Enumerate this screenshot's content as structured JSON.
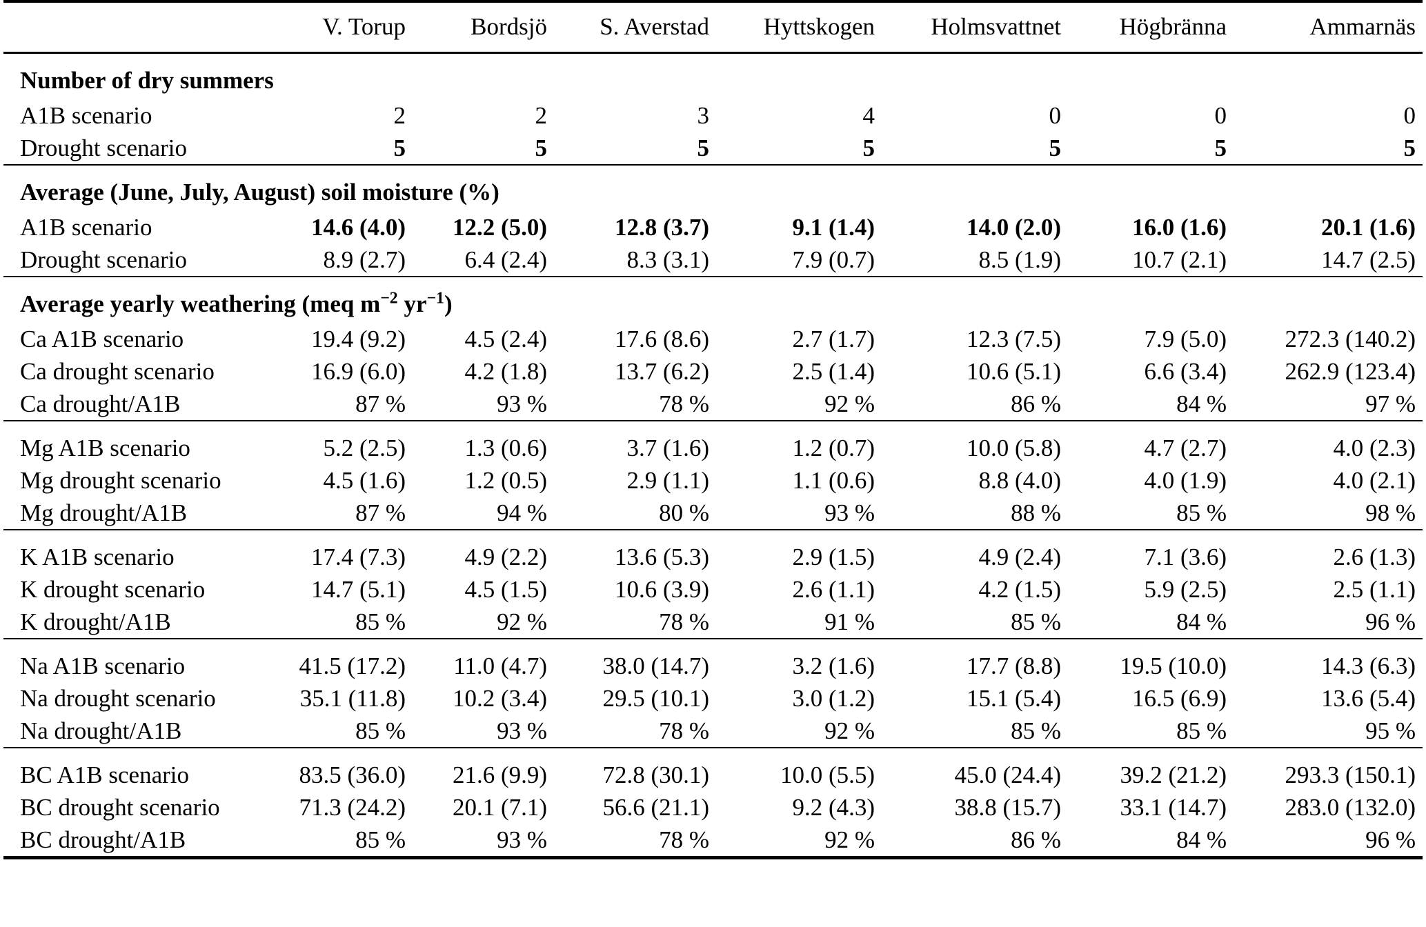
{
  "table": {
    "columns": [
      "",
      "V. Torup",
      "Bordsjö",
      "S. Averstad",
      "Hyttskogen",
      "Holmsvattnet",
      "Högbränna",
      "Ammarnäs"
    ],
    "sections": [
      {
        "id": "dry-summers",
        "title_parts": [
          {
            "t": "Number of dry summers"
          }
        ],
        "rows": [
          {
            "label": "A1B scenario",
            "bold_values": false,
            "values": [
              "2",
              "2",
              "3",
              "4",
              "0",
              "0",
              "0"
            ]
          },
          {
            "label": "Drought scenario",
            "bold_values": true,
            "values": [
              "5",
              "5",
              "5",
              "5",
              "5",
              "5",
              "5"
            ]
          }
        ]
      },
      {
        "id": "soil-moisture",
        "title_parts": [
          {
            "t": "Average (June, July, August) soil moisture (%)"
          }
        ],
        "rows": [
          {
            "label": "A1B scenario",
            "bold_values": true,
            "values": [
              "14.6 (4.0)",
              "12.2 (5.0)",
              "12.8 (3.7)",
              "9.1 (1.4)",
              "14.0 (2.0)",
              "16.0 (1.6)",
              "20.1 (1.6)"
            ]
          },
          {
            "label": "Drought scenario",
            "bold_values": false,
            "values": [
              "8.9 (2.7)",
              "6.4 (2.4)",
              "8.3 (3.1)",
              "7.9 (0.7)",
              "8.5 (1.9)",
              "10.7 (2.1)",
              "14.7 (2.5)"
            ]
          }
        ]
      },
      {
        "id": "weathering-ca",
        "title_parts": [
          {
            "t": "Average yearly weathering (meq m"
          },
          {
            "t": "−2",
            "sup": true
          },
          {
            "t": " yr"
          },
          {
            "t": "−1",
            "sup": true
          },
          {
            "t": ")"
          }
        ],
        "rows": [
          {
            "label": "Ca A1B scenario",
            "bold_values": false,
            "values": [
              "19.4 (9.2)",
              "4.5 (2.4)",
              "17.6 (8.6)",
              "2.7 (1.7)",
              "12.3 (7.5)",
              "7.9 (5.0)",
              "272.3 (140.2)"
            ]
          },
          {
            "label": "Ca drought scenario",
            "bold_values": false,
            "values": [
              "16.9 (6.0)",
              "4.2 (1.8)",
              "13.7 (6.2)",
              "2.5 (1.4)",
              "10.6 (5.1)",
              "6.6 (3.4)",
              "262.9 (123.4)"
            ]
          },
          {
            "label": "Ca drought/A1B",
            "bold_values": false,
            "values": [
              "87 %",
              "93 %",
              "78 %",
              "92 %",
              "86 %",
              "84 %",
              "97 %"
            ]
          }
        ]
      },
      {
        "id": "weathering-mg",
        "rows": [
          {
            "label": "Mg A1B scenario",
            "bold_values": false,
            "values": [
              "5.2 (2.5)",
              "1.3 (0.6)",
              "3.7 (1.6)",
              "1.2 (0.7)",
              "10.0 (5.8)",
              "4.7 (2.7)",
              "4.0 (2.3)"
            ]
          },
          {
            "label": "Mg drought scenario",
            "bold_values": false,
            "values": [
              "4.5 (1.6)",
              "1.2 (0.5)",
              "2.9 (1.1)",
              "1.1 (0.6)",
              "8.8 (4.0)",
              "4.0 (1.9)",
              "4.0 (2.1)"
            ]
          },
          {
            "label": "Mg drought/A1B",
            "bold_values": false,
            "values": [
              "87 %",
              "94 %",
              "80 %",
              "93 %",
              "88 %",
              "85 %",
              "98 %"
            ]
          }
        ]
      },
      {
        "id": "weathering-k",
        "rows": [
          {
            "label": "K A1B scenario",
            "bold_values": false,
            "values": [
              "17.4 (7.3)",
              "4.9 (2.2)",
              "13.6 (5.3)",
              "2.9 (1.5)",
              "4.9 (2.4)",
              "7.1 (3.6)",
              "2.6 (1.3)"
            ]
          },
          {
            "label": "K drought scenario",
            "bold_values": false,
            "values": [
              "14.7 (5.1)",
              "4.5 (1.5)",
              "10.6 (3.9)",
              "2.6 (1.1)",
              "4.2 (1.5)",
              "5.9 (2.5)",
              "2.5 (1.1)"
            ]
          },
          {
            "label": "K drought/A1B",
            "bold_values": false,
            "values": [
              "85 %",
              "92 %",
              "78 %",
              "91 %",
              "85 %",
              "84 %",
              "96 %"
            ]
          }
        ]
      },
      {
        "id": "weathering-na",
        "rows": [
          {
            "label": "Na A1B scenario",
            "bold_values": false,
            "values": [
              "41.5 (17.2)",
              "11.0 (4.7)",
              "38.0 (14.7)",
              "3.2 (1.6)",
              "17.7 (8.8)",
              "19.5 (10.0)",
              "14.3 (6.3)"
            ]
          },
          {
            "label": "Na drought scenario",
            "bold_values": false,
            "values": [
              "35.1 (11.8)",
              "10.2 (3.4)",
              "29.5 (10.1)",
              "3.0 (1.2)",
              "15.1 (5.4)",
              "16.5 (6.9)",
              "13.6 (5.4)"
            ]
          },
          {
            "label": "Na drought/A1B",
            "bold_values": false,
            "values": [
              "85 %",
              "93 %",
              "78 %",
              "92 %",
              "85 %",
              "85 %",
              "95 %"
            ]
          }
        ]
      },
      {
        "id": "weathering-bc",
        "rows": [
          {
            "label": "BC A1B scenario",
            "bold_values": false,
            "values": [
              "83.5 (36.0)",
              "21.6 (9.9)",
              "72.8 (30.1)",
              "10.0 (5.5)",
              "45.0 (24.4)",
              "39.2 (21.2)",
              "293.3 (150.1)"
            ]
          },
          {
            "label": "BC drought scenario",
            "bold_values": false,
            "values": [
              "71.3 (24.2)",
              "20.1 (7.1)",
              "56.6 (21.1)",
              "9.2 (4.3)",
              "38.8 (15.7)",
              "33.1 (14.7)",
              "283.0 (132.0)"
            ]
          },
          {
            "label": "BC drought/A1B",
            "bold_values": false,
            "values": [
              "85 %",
              "93 %",
              "78 %",
              "92 %",
              "86 %",
              "84 %",
              "96 %"
            ]
          }
        ]
      }
    ]
  }
}
